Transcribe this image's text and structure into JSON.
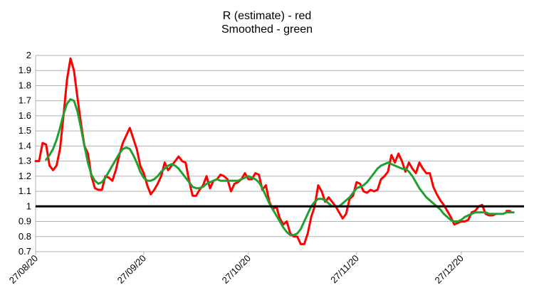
{
  "chart_data": {
    "type": "line",
    "title": "R (estimate) - red",
    "subtitle": "Smoothed - green",
    "xlabel": "",
    "ylabel": "",
    "ylim": [
      0.7,
      2.0
    ],
    "yticks": [
      "0.7",
      "0.8",
      "0.9",
      "1",
      "1.1",
      "1.2",
      "1.3",
      "1.4",
      "1.5",
      "1.6",
      "1.7",
      "1.8",
      "1.9",
      "2"
    ],
    "xticks": [
      {
        "label": "27/08/20",
        "day": 0
      },
      {
        "label": "27/09/20",
        "day": 31
      },
      {
        "label": "27/10/20",
        "day": 61
      },
      {
        "label": "27/11/20",
        "day": 92
      },
      {
        "label": "27/12/20",
        "day": 122
      }
    ],
    "xlim_days": [
      0,
      140
    ],
    "reference_line": {
      "y": 1.0,
      "color": "#000000"
    },
    "grid": "horizontal",
    "series": [
      {
        "color": "#ff0000",
        "x": [
          0,
          1,
          2,
          3,
          4,
          5,
          6,
          7,
          8,
          9,
          10,
          11,
          12,
          13,
          14,
          15,
          16,
          17,
          18,
          19,
          20,
          21,
          22,
          23,
          24,
          25,
          26,
          27,
          28,
          29,
          30,
          31,
          32,
          33,
          34,
          35,
          36,
          37,
          38,
          39,
          40,
          41,
          42,
          43,
          44,
          45,
          46,
          47,
          48,
          49,
          50,
          51,
          52,
          53,
          54,
          55,
          56,
          57,
          58,
          59,
          60,
          61,
          62,
          63,
          64,
          65,
          66,
          67,
          68,
          69,
          70,
          71,
          72,
          73,
          74,
          75,
          76,
          77,
          78,
          79,
          80,
          81,
          82,
          83,
          84,
          85,
          86,
          87,
          88,
          89,
          90,
          91,
          92,
          93,
          94,
          95,
          96,
          97,
          98,
          99,
          100,
          101,
          102,
          103,
          104,
          105,
          106,
          107,
          108,
          109,
          110,
          111,
          112,
          113,
          114,
          115,
          116,
          117,
          118,
          119,
          120,
          121,
          122,
          123,
          124,
          125,
          126,
          127,
          128,
          129,
          130,
          131,
          132,
          133,
          134,
          135,
          136
        ],
        "y": [
          1.3,
          1.3,
          1.42,
          1.41,
          1.27,
          1.24,
          1.27,
          1.38,
          1.6,
          1.84,
          1.98,
          1.9,
          1.72,
          1.55,
          1.4,
          1.35,
          1.2,
          1.12,
          1.11,
          1.11,
          1.2,
          1.19,
          1.17,
          1.24,
          1.34,
          1.42,
          1.47,
          1.52,
          1.45,
          1.38,
          1.27,
          1.22,
          1.14,
          1.08,
          1.11,
          1.15,
          1.2,
          1.29,
          1.24,
          1.27,
          1.3,
          1.33,
          1.3,
          1.29,
          1.17,
          1.07,
          1.07,
          1.11,
          1.14,
          1.2,
          1.12,
          1.17,
          1.18,
          1.21,
          1.2,
          1.18,
          1.1,
          1.15,
          1.16,
          1.18,
          1.22,
          1.18,
          1.18,
          1.22,
          1.21,
          1.11,
          1.14,
          1.03,
          0.98,
          1.0,
          0.92,
          0.88,
          0.9,
          0.82,
          0.8,
          0.8,
          0.75,
          0.75,
          0.82,
          0.93,
          1.0,
          1.14,
          1.1,
          1.03,
          1.06,
          1.03,
          1.0,
          0.96,
          0.92,
          0.95,
          1.05,
          1.07,
          1.16,
          1.15,
          1.1,
          1.09,
          1.11,
          1.1,
          1.11,
          1.18,
          1.2,
          1.23,
          1.34,
          1.29,
          1.35,
          1.3,
          1.23,
          1.29,
          1.25,
          1.22,
          1.29,
          1.25,
          1.22,
          1.22,
          1.13,
          1.08,
          1.04,
          1.01,
          0.97,
          0.93,
          0.88,
          0.89,
          0.9,
          0.9,
          0.91,
          0.96,
          0.97,
          1.0,
          1.01,
          0.95,
          0.94,
          0.94,
          0.95,
          null,
          null,
          0.97,
          0.97
        ]
      },
      {
        "color": "#20a030",
        "x": [
          3,
          4,
          5,
          6,
          7,
          8,
          9,
          10,
          11,
          12,
          13,
          14,
          15,
          16,
          17,
          18,
          19,
          20,
          21,
          22,
          23,
          24,
          25,
          26,
          27,
          28,
          29,
          30,
          31,
          32,
          33,
          34,
          35,
          36,
          37,
          38,
          39,
          40,
          41,
          42,
          43,
          44,
          45,
          46,
          47,
          48,
          49,
          50,
          51,
          52,
          53,
          54,
          55,
          56,
          57,
          58,
          59,
          60,
          61,
          62,
          63,
          64,
          65,
          66,
          67,
          68,
          69,
          70,
          71,
          72,
          73,
          74,
          75,
          76,
          77,
          78,
          79,
          80,
          81,
          82,
          83,
          84,
          85,
          86,
          87,
          88,
          89,
          90,
          91,
          92,
          93,
          94,
          95,
          96,
          97,
          98,
          99,
          100,
          101,
          102,
          103,
          104,
          105,
          106,
          107,
          108,
          109,
          110,
          111,
          112,
          113,
          114,
          115,
          116,
          117,
          118,
          119,
          120,
          121,
          122,
          123,
          124,
          125,
          126,
          127,
          128,
          129,
          130,
          131,
          132,
          133,
          134,
          135,
          136,
          137
        ],
        "y": [
          1.31,
          1.34,
          1.38,
          1.44,
          1.52,
          1.61,
          1.68,
          1.71,
          1.7,
          1.63,
          1.52,
          1.4,
          1.29,
          1.21,
          1.17,
          1.15,
          1.16,
          1.19,
          1.23,
          1.27,
          1.31,
          1.35,
          1.38,
          1.39,
          1.38,
          1.34,
          1.29,
          1.23,
          1.19,
          1.17,
          1.17,
          1.18,
          1.2,
          1.23,
          1.25,
          1.27,
          1.28,
          1.27,
          1.25,
          1.22,
          1.19,
          1.16,
          1.13,
          1.12,
          1.12,
          1.13,
          1.15,
          1.16,
          1.17,
          1.18,
          1.17,
          1.17,
          1.17,
          1.17,
          1.17,
          1.17,
          1.18,
          1.19,
          1.2,
          1.19,
          1.18,
          1.16,
          1.12,
          1.07,
          1.02,
          0.98,
          0.94,
          0.9,
          0.86,
          0.83,
          0.81,
          0.81,
          0.82,
          0.85,
          0.9,
          0.95,
          1.0,
          1.03,
          1.05,
          1.05,
          1.04,
          1.02,
          1.0,
          1.0,
          1.0,
          1.02,
          1.04,
          1.06,
          1.09,
          1.12,
          1.13,
          1.14,
          1.16,
          1.19,
          1.22,
          1.25,
          1.27,
          1.28,
          1.29,
          1.28,
          1.27,
          1.26,
          1.25,
          1.25,
          1.23,
          1.2,
          1.16,
          1.12,
          1.09,
          1.06,
          1.04,
          1.02,
          1.0,
          0.98,
          0.95,
          0.93,
          0.91,
          0.9,
          0.9,
          0.91,
          0.93,
          0.94,
          0.95,
          0.96,
          0.96,
          0.96,
          0.96,
          0.95,
          0.95,
          0.95,
          0.95,
          0.95,
          0.96,
          0.96,
          0.96
        ]
      }
    ]
  }
}
